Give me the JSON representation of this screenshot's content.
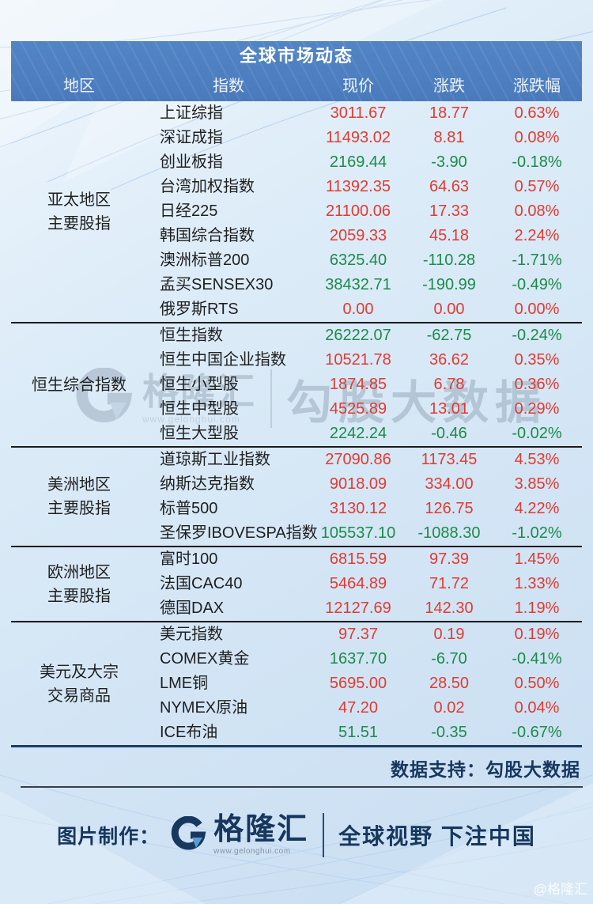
{
  "chart_data": {
    "type": "table",
    "title": "全球市场动态",
    "columns": [
      "地区",
      "指数",
      "现价",
      "涨跌",
      "涨跌幅"
    ],
    "groups": [
      {
        "region_lines": [
          "亚太地区",
          "主要股指"
        ],
        "rows": [
          {
            "name": "上证综指",
            "price": "3011.67",
            "change": "18.77",
            "pct": "0.63%",
            "dir": "up"
          },
          {
            "name": "深证成指",
            "price": "11493.02",
            "change": "8.81",
            "pct": "0.08%",
            "dir": "up"
          },
          {
            "name": "创业板指",
            "price": "2169.44",
            "change": "-3.90",
            "pct": "-0.18%",
            "dir": "down"
          },
          {
            "name": "台湾加权指数",
            "price": "11392.35",
            "change": "64.63",
            "pct": "0.57%",
            "dir": "up"
          },
          {
            "name": "日经225",
            "price": "21100.06",
            "change": "17.33",
            "pct": "0.08%",
            "dir": "up"
          },
          {
            "name": "韩国综合指数",
            "price": "2059.33",
            "change": "45.18",
            "pct": "2.24%",
            "dir": "up"
          },
          {
            "name": "澳洲标普200",
            "price": "6325.40",
            "change": "-110.28",
            "pct": "-1.71%",
            "dir": "down"
          },
          {
            "name": "孟买SENSEX30",
            "price": "38432.71",
            "change": "-190.99",
            "pct": "-0.49%",
            "dir": "down"
          },
          {
            "name": "俄罗斯RTS",
            "price": "0.00",
            "change": "0.00",
            "pct": "0.00%",
            "dir": "up"
          }
        ]
      },
      {
        "region_lines": [
          "恒生综合指数"
        ],
        "rows": [
          {
            "name": "恒生指数",
            "price": "26222.07",
            "change": "-62.75",
            "pct": "-0.24%",
            "dir": "down"
          },
          {
            "name": "恒生中国企业指数",
            "price": "10521.78",
            "change": "36.62",
            "pct": "0.35%",
            "dir": "up"
          },
          {
            "name": "恒生小型股",
            "price": "1874.85",
            "change": "6.78",
            "pct": "0.36%",
            "dir": "up"
          },
          {
            "name": "恒生中型股",
            "price": "4525.89",
            "change": "13.01",
            "pct": "0.29%",
            "dir": "up"
          },
          {
            "name": "恒生大型股",
            "price": "2242.24",
            "change": "-0.46",
            "pct": "-0.02%",
            "dir": "down"
          }
        ]
      },
      {
        "region_lines": [
          "美洲地区",
          "主要股指"
        ],
        "rows": [
          {
            "name": "道琼斯工业指数",
            "price": "27090.86",
            "change": "1173.45",
            "pct": "4.53%",
            "dir": "up"
          },
          {
            "name": "纳斯达克指数",
            "price": "9018.09",
            "change": "334.00",
            "pct": "3.85%",
            "dir": "up"
          },
          {
            "name": "标普500",
            "price": "3130.12",
            "change": "126.75",
            "pct": "4.22%",
            "dir": "up"
          },
          {
            "name": "圣保罗IBOVESPA指数",
            "price": "105537.10",
            "change": "-1088.30",
            "pct": "-1.02%",
            "dir": "down"
          }
        ]
      },
      {
        "region_lines": [
          "欧洲地区",
          "主要股指"
        ],
        "rows": [
          {
            "name": "富时100",
            "price": "6815.59",
            "change": "97.39",
            "pct": "1.45%",
            "dir": "up"
          },
          {
            "name": "法国CAC40",
            "price": "5464.89",
            "change": "71.72",
            "pct": "1.33%",
            "dir": "up"
          },
          {
            "name": "德国DAX",
            "price": "12127.69",
            "change": "142.30",
            "pct": "1.19%",
            "dir": "up"
          }
        ]
      },
      {
        "region_lines": [
          "美元及大宗",
          "交易商品"
        ],
        "rows": [
          {
            "name": "美元指数",
            "price": "97.37",
            "change": "0.19",
            "pct": "0.19%",
            "dir": "up"
          },
          {
            "name": "COMEX黄金",
            "price": "1637.70",
            "change": "-6.70",
            "pct": "-0.41%",
            "dir": "down"
          },
          {
            "name": "LME铜",
            "price": "5695.00",
            "change": "28.50",
            "pct": "0.50%",
            "dir": "up"
          },
          {
            "name": "NYMEX原油",
            "price": "47.20",
            "change": "0.02",
            "pct": "0.04%",
            "dir": "up"
          },
          {
            "name": "ICE布油",
            "price": "51.51",
            "change": "-0.35",
            "pct": "-0.67%",
            "dir": "down"
          }
        ]
      }
    ]
  },
  "support_note": "数据支持：勾股大数据",
  "footer": {
    "made_by_label": "图片制作：",
    "brand_name": "格隆汇",
    "brand_url": "www.gelonghui.com",
    "slogan": "全球视野 下注中国"
  },
  "watermarks": {
    "brand_name": "格隆汇",
    "brand_url": "www.gelonghui.com",
    "big_text": "勾股大数据",
    "corner_text": "@格隆汇"
  },
  "colors": {
    "up_red": "#e03b31",
    "down_green": "#1d8a4a",
    "header_blue": "#4a7abc",
    "navy": "#17375e"
  }
}
